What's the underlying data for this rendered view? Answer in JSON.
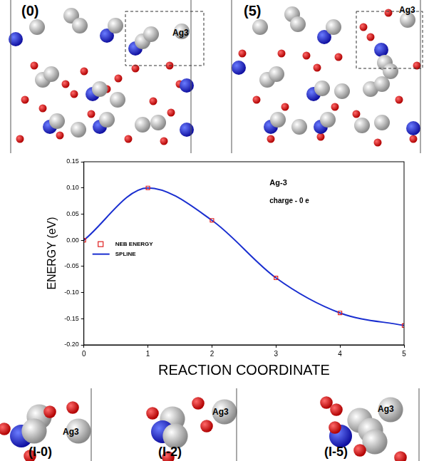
{
  "chart_data": {
    "type": "line",
    "xlabel": "REACTION COORDINATE",
    "ylabel": "ENERGY (eV)",
    "annotations": [
      "Ag-3",
      "charge - 0 e"
    ],
    "x": [
      0,
      1,
      2,
      3,
      4,
      5
    ],
    "series": [
      {
        "name": "NEB ENERGY",
        "type": "scatter",
        "marker": "square",
        "color": "#e02020",
        "values": [
          0.0,
          0.1,
          0.038,
          -0.072,
          -0.139,
          -0.163
        ]
      },
      {
        "name": "SPLINE",
        "type": "line",
        "line_style": "solid",
        "color": "#1a2fd0",
        "values": [
          0.0,
          0.1,
          0.038,
          -0.072,
          -0.139,
          -0.163
        ]
      }
    ],
    "xlim": [
      0,
      5
    ],
    "xticks": [
      0,
      1,
      2,
      3,
      4,
      5
    ],
    "ylim": [
      -0.2,
      0.15
    ],
    "yticks": [
      {
        "value": -0.2,
        "label": "-0.20"
      },
      {
        "value": -0.15,
        "label": "-0.15"
      },
      {
        "value": -0.1,
        "label": "-0.10"
      },
      {
        "value": -0.05,
        "label": "-0.05"
      },
      {
        "value": 0,
        "label": "0.00"
      },
      {
        "value": 0.05,
        "label": "0.05"
      },
      {
        "value": 0.1,
        "label": "0.10"
      },
      {
        "value": 0.15,
        "label": "0.15"
      }
    ],
    "grid": false,
    "legend": "left"
  },
  "panels": {
    "top": [
      {
        "label": "(0)",
        "atom_label": "Ag3"
      },
      {
        "label": "(5)",
        "atom_label": "Ag3"
      }
    ],
    "bottom": [
      {
        "label": "(I-0)",
        "atom_label": "Ag3"
      },
      {
        "label": "(I-2)",
        "atom_label": "Ag3"
      },
      {
        "label": "(I-5)",
        "atom_label": "Ag3"
      }
    ]
  }
}
